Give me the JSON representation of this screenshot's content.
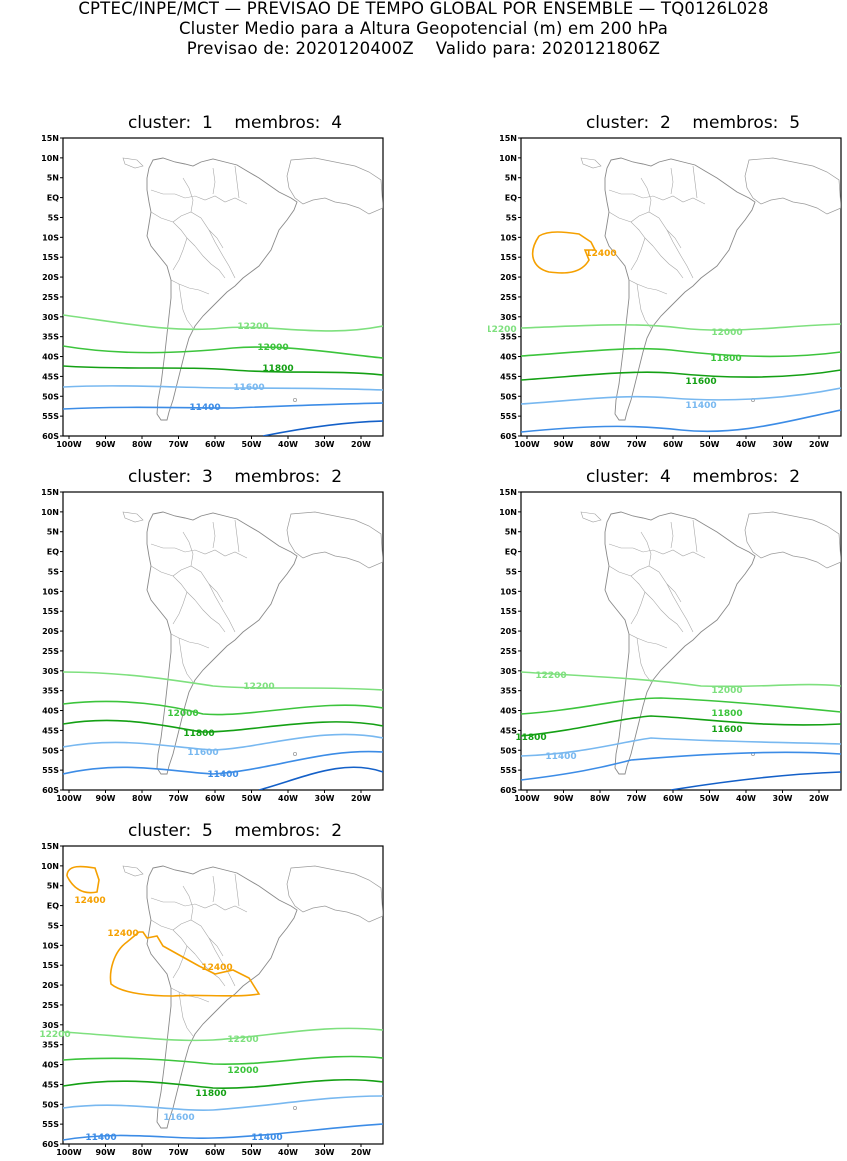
{
  "header": {
    "line1": "CPTEC/INPE/MCT — PREVISAO DE TEMPO GLOBAL POR ENSEMBLE — TQ0126L028",
    "line2": "Cluster Medio para a Altura Geopotencial (m) em 200 hPa",
    "line3": "Previsao de: 2020120400Z    Valido para: 2020121806Z"
  },
  "axes": {
    "lat_ticks": [
      "15N",
      "10N",
      "5N",
      "EQ",
      "5S",
      "10S",
      "15S",
      "20S",
      "25S",
      "30S",
      "35S",
      "40S",
      "45S",
      "50S",
      "55S",
      "60S"
    ],
    "lon_ticks": [
      "100W",
      "90W",
      "80W",
      "70W",
      "60W",
      "50W",
      "40W",
      "30W",
      "20W"
    ]
  },
  "colors": {
    "c12400": "#f5a000",
    "c12200": "#7ee07e",
    "c12000": "#3cc43c",
    "c11800": "#14a014",
    "c11600": "#78b8f0",
    "c11400": "#3c8ce6",
    "c11200": "#1460c8"
  },
  "panels": [
    {
      "title": "cluster:  1    membros:  4",
      "labels": [
        "12200",
        "12000",
        "11800",
        "11600",
        "11400"
      ]
    },
    {
      "title": "cluster:  2    membros:  5",
      "labels": [
        "12400",
        "12200",
        "12000",
        "11800",
        "11600",
        "11400"
      ]
    },
    {
      "title": "cluster:  3    membros:  2",
      "labels": [
        "12200",
        "12000",
        "11800",
        "11600",
        "11400"
      ]
    },
    {
      "title": "cluster:  4    membros:  2",
      "labels": [
        "12200",
        "12000",
        "11800",
        "11800",
        "11600",
        "11400"
      ]
    },
    {
      "title": "cluster:  5    membros:  2",
      "labels": [
        "12400",
        "12400",
        "12400",
        "12200",
        "12200",
        "12000",
        "11800",
        "11600",
        "11400",
        "11400"
      ]
    }
  ]
}
